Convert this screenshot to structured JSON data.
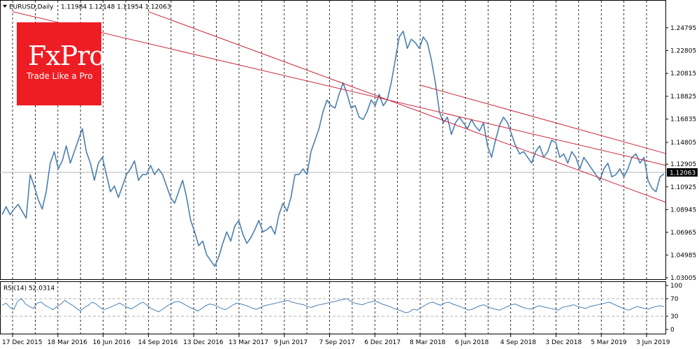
{
  "header": {
    "symbol": "EURUSD,Daily",
    "ohlc": "1.11984 1.12148 1.11954 1.12063"
  },
  "logo": {
    "brand": "FxPro",
    "tagline": "Trade Like a Pro"
  },
  "colors": {
    "price_line": "#4a7fb0",
    "trend_line": "#c8283c",
    "grid": "#000000",
    "logo_bg": "#ee1d23",
    "price_tag_bg": "#000000"
  },
  "chart_data": [
    {
      "type": "line",
      "title": "EURUSD,Daily",
      "price_label": "1.12063",
      "current_price": 1.12063,
      "ylim": [
        1.03,
        1.26
      ],
      "y_ticks": [
        "1.24795",
        "1.22805",
        "1.20815",
        "1.18825",
        "1.16835",
        "1.14805",
        "1.12905",
        "1.10925",
        "1.08945",
        "1.06965",
        "1.04985",
        "1.03005"
      ],
      "x_ticks": [
        "17 Dec 2015",
        "18 Mar 2016",
        "16 Jun 2016",
        "14 Sep 2016",
        "13 Dec 2016",
        "13 Mar 2017",
        "9 Jun 2017",
        "7 Sep 2017",
        "6 Dec 2017",
        "8 Mar 2018",
        "6 Jun 2018",
        "4 Sep 2018",
        "3 Dec 2018",
        "5 Mar 2019",
        "3 Jun 2019"
      ],
      "series": [
        {
          "values": [
            1.085,
            1.092,
            1.085,
            1.09,
            1.094,
            1.088,
            1.082,
            1.12,
            1.11,
            1.098,
            1.09,
            1.105,
            1.13,
            1.14,
            1.125,
            1.132,
            1.145,
            1.13,
            1.14,
            1.15,
            1.16,
            1.14,
            1.13,
            1.115,
            1.13,
            1.135,
            1.12,
            1.105,
            1.11,
            1.1,
            1.11,
            1.12,
            1.125,
            1.132,
            1.115,
            1.12,
            1.12,
            1.128,
            1.12,
            1.125,
            1.12,
            1.11,
            1.1,
            1.095,
            1.105,
            1.115,
            1.1,
            1.08,
            1.07,
            1.058,
            1.062,
            1.05,
            1.045,
            1.04,
            1.048,
            1.06,
            1.07,
            1.062,
            1.075,
            1.08,
            1.068,
            1.06,
            1.065,
            1.072,
            1.08,
            1.07,
            1.072,
            1.075,
            1.068,
            1.085,
            1.095,
            1.088,
            1.1,
            1.12,
            1.12,
            1.125,
            1.12,
            1.14,
            1.15,
            1.16,
            1.175,
            1.185,
            1.18,
            1.178,
            1.19,
            1.2,
            1.19,
            1.178,
            1.18,
            1.17,
            1.168,
            1.175,
            1.185,
            1.18,
            1.19,
            1.18,
            1.185,
            1.2,
            1.22,
            1.24,
            1.245,
            1.23,
            1.238,
            1.235,
            1.23,
            1.24,
            1.235,
            1.22,
            1.2,
            1.175,
            1.165,
            1.17,
            1.155,
            1.165,
            1.17,
            1.165,
            1.16,
            1.168,
            1.162,
            1.158,
            1.165,
            1.145,
            1.135,
            1.15,
            1.163,
            1.17,
            1.165,
            1.155,
            1.145,
            1.138,
            1.14,
            1.135,
            1.13,
            1.14,
            1.145,
            1.135,
            1.14,
            1.15,
            1.148,
            1.135,
            1.138,
            1.13,
            1.14,
            1.135,
            1.125,
            1.135,
            1.13,
            1.125,
            1.12,
            1.115,
            1.125,
            1.13,
            1.118,
            1.12,
            1.125,
            1.118,
            1.125,
            1.135,
            1.138,
            1.13,
            1.135,
            1.115,
            1.108,
            1.105,
            1.118,
            1.12063
          ]
        }
      ],
      "trend_lines": [
        {
          "x": [
            "17 Dec 2015",
            "3 Jun 2019"
          ],
          "y": [
            1.262,
            1.132
          ]
        },
        {
          "x": [
            "14 Sep 2016",
            "3 Jun 2019"
          ],
          "y": [
            1.262,
            1.102
          ]
        },
        {
          "x": [
            "8 Mar 2018",
            "3 Jun 2019"
          ],
          "y": [
            1.198,
            1.143
          ]
        }
      ]
    },
    {
      "type": "line",
      "title": "RSI(14) 52.0314",
      "ylim": [
        0,
        100
      ],
      "y_ticks": [
        "100",
        "70",
        "30",
        "0"
      ],
      "levels": [
        70,
        30
      ],
      "series": [
        {
          "values": [
            55,
            60,
            50,
            45,
            65,
            70,
            58,
            52,
            48,
            60,
            62,
            55,
            50,
            45,
            52,
            58,
            66,
            60,
            55,
            48,
            42,
            50,
            55,
            62,
            58,
            50,
            45,
            48,
            52,
            56,
            60,
            55,
            50,
            47,
            52,
            58,
            62,
            55,
            48,
            44,
            40,
            46,
            52,
            58,
            62,
            64,
            60,
            55,
            50,
            46,
            42,
            48,
            54,
            58,
            56,
            52,
            48,
            45,
            50,
            56,
            60,
            58,
            55,
            52,
            48,
            46,
            50,
            54,
            56,
            58,
            60,
            62,
            64,
            66,
            62,
            60,
            58,
            56,
            52,
            50,
            54,
            56,
            58,
            60,
            62,
            64,
            66,
            68,
            70,
            64,
            60,
            58,
            56,
            60,
            62,
            65,
            62,
            58,
            55,
            52,
            48,
            45,
            42,
            38,
            40,
            46,
            44,
            50,
            55,
            60,
            62,
            58,
            55,
            60,
            62,
            58,
            55,
            52,
            48,
            44,
            46,
            50,
            54,
            56,
            52,
            48,
            46,
            44,
            48,
            52,
            56,
            58,
            54,
            50,
            48,
            46,
            50,
            54,
            52,
            50,
            48,
            46,
            44,
            50,
            52,
            54,
            56,
            52,
            50,
            48,
            52,
            54,
            56,
            58,
            60,
            62,
            58,
            54,
            50,
            46,
            44,
            48,
            52,
            50,
            48,
            46,
            50,
            52,
            54,
            52
          ]
        }
      ]
    }
  ]
}
